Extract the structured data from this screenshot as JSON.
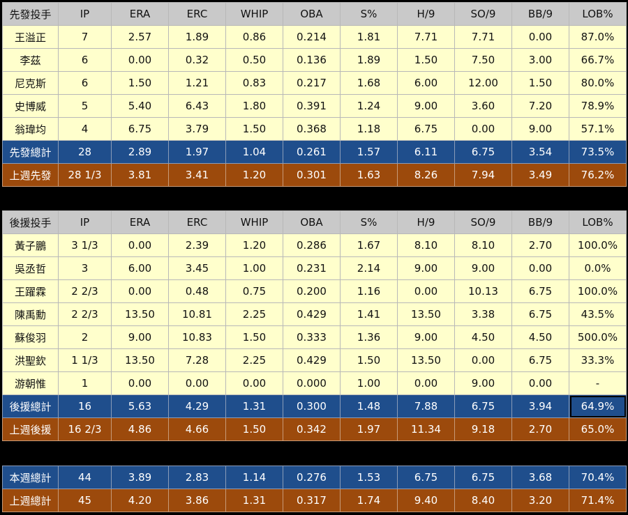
{
  "starters": {
    "header": [
      "先發投手",
      "IP",
      "ERA",
      "ERC",
      "WHIP",
      "OBA",
      "S%",
      "H/9",
      "SO/9",
      "BB/9",
      "LOB%"
    ],
    "rows": [
      [
        "王溢正",
        "7",
        "2.57",
        "1.89",
        "0.86",
        "0.214",
        "1.81",
        "7.71",
        "7.71",
        "0.00",
        "87.0%"
      ],
      [
        "李茲",
        "6",
        "0.00",
        "0.32",
        "0.50",
        "0.136",
        "1.89",
        "1.50",
        "7.50",
        "3.00",
        "66.7%"
      ],
      [
        "尼克斯",
        "6",
        "1.50",
        "1.21",
        "0.83",
        "0.217",
        "1.68",
        "6.00",
        "12.00",
        "1.50",
        "80.0%"
      ],
      [
        "史博威",
        "5",
        "5.40",
        "6.43",
        "1.80",
        "0.391",
        "1.24",
        "9.00",
        "3.60",
        "7.20",
        "78.9%"
      ],
      [
        "翁瑋均",
        "4",
        "6.75",
        "3.79",
        "1.50",
        "0.368",
        "1.18",
        "6.75",
        "0.00",
        "9.00",
        "57.1%"
      ]
    ],
    "total": [
      "先發總計",
      "28",
      "2.89",
      "1.97",
      "1.04",
      "0.261",
      "1.57",
      "6.11",
      "6.75",
      "3.54",
      "73.5%"
    ],
    "last_week": [
      "上週先發",
      "28 1/3",
      "3.81",
      "3.41",
      "1.20",
      "0.301",
      "1.63",
      "8.26",
      "7.94",
      "3.49",
      "76.2%"
    ]
  },
  "relievers": {
    "header": [
      "後援投手",
      "IP",
      "ERA",
      "ERC",
      "WHIP",
      "OBA",
      "S%",
      "H/9",
      "SO/9",
      "BB/9",
      "LOB%"
    ],
    "rows": [
      [
        "黃子鵬",
        "3 1/3",
        "0.00",
        "2.39",
        "1.20",
        "0.286",
        "1.67",
        "8.10",
        "8.10",
        "2.70",
        "100.0%"
      ],
      [
        "吳丞哲",
        "3",
        "6.00",
        "3.45",
        "1.00",
        "0.231",
        "2.14",
        "9.00",
        "9.00",
        "0.00",
        "0.0%"
      ],
      [
        "王躍霖",
        "2 2/3",
        "0.00",
        "0.48",
        "0.75",
        "0.200",
        "1.16",
        "0.00",
        "10.13",
        "6.75",
        "100.0%"
      ],
      [
        "陳禹勳",
        "2 2/3",
        "13.50",
        "10.81",
        "2.25",
        "0.429",
        "1.41",
        "13.50",
        "3.38",
        "6.75",
        "43.5%"
      ],
      [
        "蘇俊羽",
        "2",
        "9.00",
        "10.83",
        "1.50",
        "0.333",
        "1.36",
        "9.00",
        "4.50",
        "4.50",
        "500.0%"
      ],
      [
        "洪聖欽",
        "1 1/3",
        "13.50",
        "7.28",
        "2.25",
        "0.429",
        "1.50",
        "13.50",
        "0.00",
        "6.75",
        "33.3%"
      ],
      [
        "游朝惟",
        "1",
        "0.00",
        "0.00",
        "0.00",
        "0.000",
        "1.00",
        "0.00",
        "9.00",
        "0.00",
        "-"
      ]
    ],
    "total": [
      "後援總計",
      "16",
      "5.63",
      "4.29",
      "1.31",
      "0.300",
      "1.48",
      "7.88",
      "6.75",
      "3.94",
      "64.9%"
    ],
    "last_week": [
      "上週後援",
      "16 2/3",
      "4.86",
      "4.66",
      "1.50",
      "0.342",
      "1.97",
      "11.34",
      "9.18",
      "2.70",
      "65.0%"
    ]
  },
  "summary": {
    "this_week": [
      "本週總計",
      "44",
      "3.89",
      "2.83",
      "1.14",
      "0.276",
      "1.53",
      "6.75",
      "6.75",
      "3.68",
      "70.4%"
    ],
    "last_week": [
      "上週總計",
      "45",
      "4.20",
      "3.86",
      "1.31",
      "0.317",
      "1.74",
      "9.40",
      "8.40",
      "3.20",
      "71.4%"
    ]
  }
}
